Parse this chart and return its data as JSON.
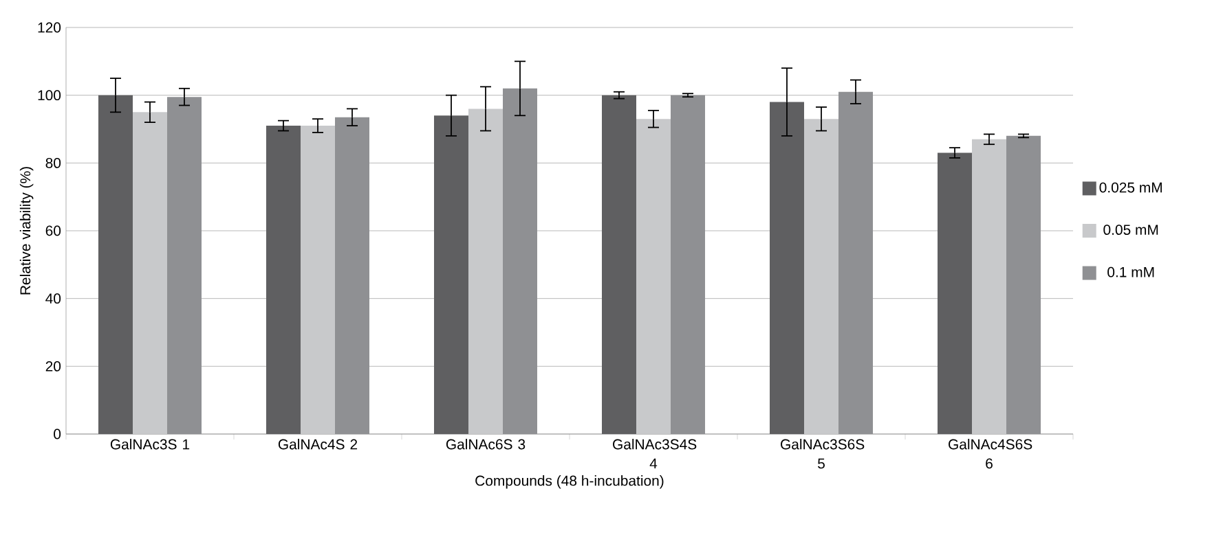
{
  "chart_data": {
    "type": "bar",
    "xlabel": "Compounds (48 h-incubation)",
    "ylabel": "Relative viability (%)",
    "categories": [
      "GalNAc3S 1",
      "GalNAc4S 2",
      "GalNAc6S 3",
      "GalNAc3S4S 4",
      "GalNAc3S6S 5",
      "GalNAc4S6S 6"
    ],
    "series": [
      {
        "name": "0.025 mM",
        "color": "#5f5f61",
        "values": [
          100,
          91,
          94,
          100,
          98,
          83
        ],
        "errors": [
          5,
          1.5,
          6,
          1,
          10,
          1.5
        ]
      },
      {
        "name": "0.05 mM",
        "color": "#c8c9cb",
        "values": [
          95,
          91,
          96,
          93,
          93,
          87
        ],
        "errors": [
          3,
          2,
          6.5,
          2.5,
          3.5,
          1.5
        ]
      },
      {
        "name": "0.1 mM",
        "color": "#8f9093",
        "values": [
          99.5,
          93.5,
          102,
          100,
          101,
          88
        ],
        "errors": [
          2.5,
          2.5,
          8,
          0.5,
          3.5,
          0.5
        ]
      }
    ],
    "ylim": [
      0,
      120
    ],
    "yticks": [
      0,
      20,
      40,
      60,
      80,
      100,
      120
    ],
    "grid": "y",
    "legend": "right"
  }
}
